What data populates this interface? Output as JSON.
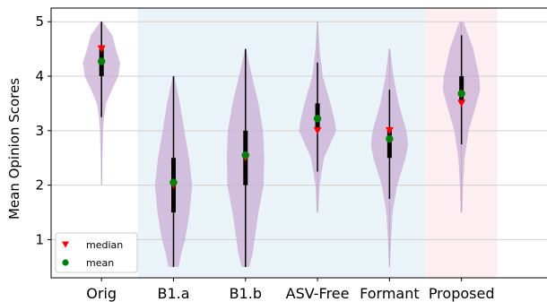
{
  "chart_data": {
    "type": "violin",
    "ylabel": "Mean Opinion Scores",
    "xlabel": "",
    "title": "",
    "ylim": [
      0.3,
      5.25
    ],
    "yticks": [
      1,
      2,
      3,
      4,
      5
    ],
    "grid": "horizontal",
    "legend_position": "lower-left",
    "categories": [
      "Orig",
      "B1.a",
      "B1.b",
      "ASV-Free",
      "Formant",
      "Proposed"
    ],
    "background_bands": [
      {
        "from": "B1.a",
        "to": "Formant",
        "color": "#eaf4f8"
      },
      {
        "from": "Proposed",
        "to": "Proposed",
        "color": "#fdeef2"
      }
    ],
    "violin_color": "#c9aed6",
    "groups": [
      {
        "name": "Orig",
        "median": 4.5,
        "mean": 4.27,
        "q1": 4.0,
        "q3": 4.5,
        "whisker_low": 3.25,
        "whisker_high": 5.0,
        "min": 2.0,
        "max": 5.0,
        "density": [
          [
            2.0,
            0.02
          ],
          [
            2.5,
            0.03
          ],
          [
            3.0,
            0.06
          ],
          [
            3.25,
            0.1
          ],
          [
            3.5,
            0.18
          ],
          [
            3.75,
            0.4
          ],
          [
            4.0,
            0.65
          ],
          [
            4.25,
            0.72
          ],
          [
            4.5,
            0.55
          ],
          [
            4.75,
            0.42
          ],
          [
            4.95,
            0.12
          ],
          [
            5.0,
            0.04
          ]
        ]
      },
      {
        "name": "B1.a",
        "median": 2.0,
        "mean": 2.05,
        "q1": 1.5,
        "q3": 2.5,
        "whisker_low": 0.5,
        "whisker_high": 4.0,
        "min": 0.5,
        "max": 4.0,
        "density": [
          [
            0.5,
            0.2
          ],
          [
            0.75,
            0.3
          ],
          [
            1.0,
            0.45
          ],
          [
            1.5,
            0.62
          ],
          [
            2.0,
            0.72
          ],
          [
            2.5,
            0.6
          ],
          [
            3.0,
            0.42
          ],
          [
            3.5,
            0.25
          ],
          [
            4.0,
            0.03
          ]
        ]
      },
      {
        "name": "B1.b",
        "median": 2.5,
        "mean": 2.55,
        "q1": 2.0,
        "q3": 3.0,
        "whisker_low": 0.5,
        "whisker_high": 4.5,
        "min": 0.5,
        "max": 4.5,
        "density": [
          [
            0.5,
            0.15
          ],
          [
            0.75,
            0.28
          ],
          [
            1.0,
            0.35
          ],
          [
            1.5,
            0.5
          ],
          [
            2.0,
            0.7
          ],
          [
            2.5,
            0.72
          ],
          [
            3.0,
            0.68
          ],
          [
            3.5,
            0.5
          ],
          [
            4.0,
            0.25
          ],
          [
            4.5,
            0.02
          ]
        ]
      },
      {
        "name": "ASV-Free",
        "median": 3.0,
        "mean": 3.22,
        "q1": 3.0,
        "q3": 3.5,
        "whisker_low": 2.25,
        "whisker_high": 4.25,
        "min": 1.5,
        "max": 5.0,
        "density": [
          [
            1.5,
            0.03
          ],
          [
            2.0,
            0.08
          ],
          [
            2.5,
            0.25
          ],
          [
            3.0,
            0.72
          ],
          [
            3.2,
            0.65
          ],
          [
            3.5,
            0.5
          ],
          [
            4.0,
            0.2
          ],
          [
            4.5,
            0.08
          ],
          [
            5.0,
            0.02
          ]
        ]
      },
      {
        "name": "Formant",
        "median": 3.0,
        "mean": 2.85,
        "q1": 2.5,
        "q3": 3.0,
        "whisker_low": 1.75,
        "whisker_high": 3.75,
        "min": 0.5,
        "max": 4.5,
        "density": [
          [
            0.5,
            0.02
          ],
          [
            1.0,
            0.06
          ],
          [
            1.5,
            0.12
          ],
          [
            2.0,
            0.3
          ],
          [
            2.5,
            0.62
          ],
          [
            2.75,
            0.72
          ],
          [
            3.0,
            0.65
          ],
          [
            3.5,
            0.35
          ],
          [
            4.0,
            0.15
          ],
          [
            4.5,
            0.03
          ]
        ]
      },
      {
        "name": "Proposed",
        "median": 3.5,
        "mean": 3.68,
        "q1": 3.5,
        "q3": 4.0,
        "whisker_low": 2.75,
        "whisker_high": 4.75,
        "min": 1.5,
        "max": 5.0,
        "density": [
          [
            1.5,
            0.03
          ],
          [
            2.0,
            0.06
          ],
          [
            2.5,
            0.12
          ],
          [
            3.0,
            0.28
          ],
          [
            3.5,
            0.58
          ],
          [
            3.75,
            0.72
          ],
          [
            4.0,
            0.68
          ],
          [
            4.5,
            0.45
          ],
          [
            5.0,
            0.08
          ]
        ]
      }
    ],
    "legend": [
      {
        "label": "median",
        "marker": "triangle-down",
        "color": "#ff0000"
      },
      {
        "label": "mean",
        "marker": "circle",
        "color": "#008000"
      }
    ]
  }
}
